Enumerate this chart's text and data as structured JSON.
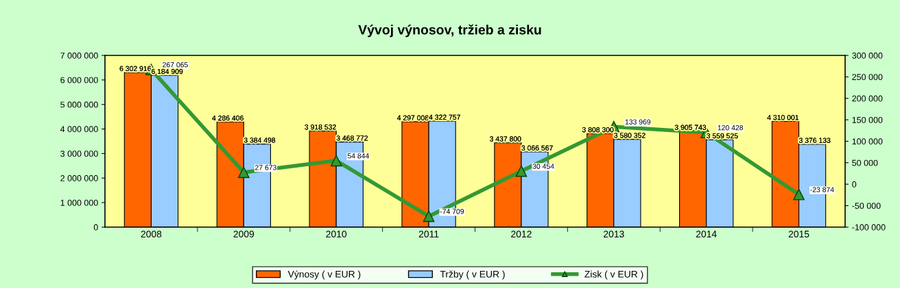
{
  "chart_data": {
    "type": "bar",
    "title": "Vývoj výnosov, tržieb a zisku",
    "categories": [
      "2008",
      "2009",
      "2010",
      "2011",
      "2012",
      "2013",
      "2014",
      "2015"
    ],
    "series": [
      {
        "name": "Výnosy ( v EUR )",
        "color": "#ff6600",
        "values": [
          6302916,
          4286406,
          3918532,
          4297008,
          3437800,
          3808300,
          3905743,
          4310001
        ],
        "value_labels": [
          "6 302 916",
          "4 286 406",
          "3 918 532",
          "4 297 008",
          "3 437 800",
          "3 808 300",
          "3 905 743",
          "4 310 001"
        ]
      },
      {
        "name": "Tržby ( v EUR )",
        "color": "#99ccff",
        "values": [
          6184909,
          3384498,
          3468772,
          4322757,
          3066567,
          3580352,
          3559525,
          3376133
        ],
        "value_labels": [
          "6 184 909",
          "3 384 498",
          "3 468 772",
          "4 322 757",
          "3 066 567",
          "3 580 352",
          "3 559 525",
          "3 376 133"
        ]
      },
      {
        "name": "Zisk ( v EUR )",
        "type": "line",
        "axis": "y2",
        "color": "#339933",
        "marker": "triangle",
        "values": [
          267065,
          27673,
          54844,
          -74709,
          30454,
          133969,
          120428,
          -23874
        ],
        "value_labels": [
          "267 065",
          "27 673",
          "54 844",
          "-74 709",
          "30 454",
          "133 969",
          "120 428",
          "-23 874"
        ]
      }
    ],
    "ylim": [
      0,
      7000000
    ],
    "yticks": [
      {
        "value": 0,
        "label": "0"
      },
      {
        "value": 1000000,
        "label": "1 000 000"
      },
      {
        "value": 2000000,
        "label": "2 000 000"
      },
      {
        "value": 3000000,
        "label": "3 000 000"
      },
      {
        "value": 4000000,
        "label": "4 000 000"
      },
      {
        "value": 5000000,
        "label": "5 000 000"
      },
      {
        "value": 6000000,
        "label": "6 000 000"
      },
      {
        "value": 7000000,
        "label": "7 000 000"
      }
    ],
    "y2lim": [
      -100000,
      300000
    ],
    "y2ticks": [
      {
        "value": -100000,
        "label": "-100 000"
      },
      {
        "value": -50000,
        "label": "-50 000"
      },
      {
        "value": 0,
        "label": "0"
      },
      {
        "value": 50000,
        "label": "50 000"
      },
      {
        "value": 100000,
        "label": "100 000"
      },
      {
        "value": 150000,
        "label": "150 000"
      },
      {
        "value": 200000,
        "label": "200 000"
      },
      {
        "value": 250000,
        "label": "250 000"
      },
      {
        "value": 300000,
        "label": "300 000"
      }
    ],
    "grid": false,
    "legend": "bottom"
  }
}
